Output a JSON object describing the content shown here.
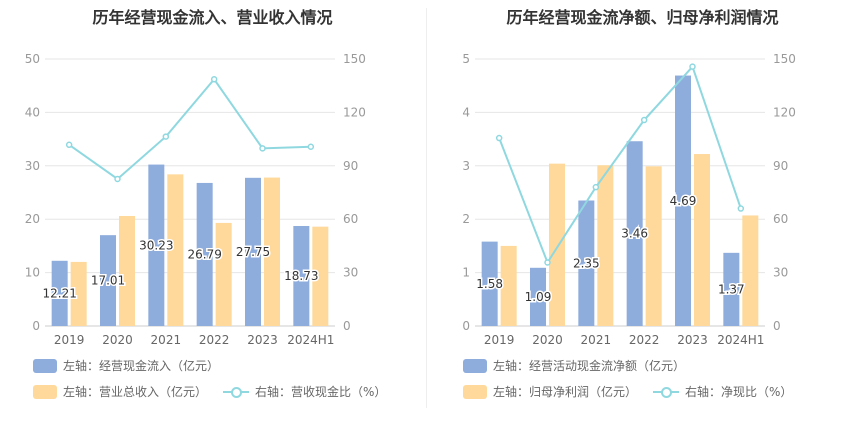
{
  "chart_data": [
    {
      "type": "bar",
      "title": "历年经营现金流入、营业收入情况",
      "categories": [
        "2019",
        "2020",
        "2021",
        "2022",
        "2023",
        "2024H1"
      ],
      "series": [
        {
          "name": "左轴：经营现金流入（亿元）",
          "axis": "left",
          "kind": "bar",
          "color": "#8eacdc",
          "values": [
            12.21,
            17.01,
            30.23,
            26.79,
            27.75,
            18.73
          ],
          "labels": [
            "12.21",
            "17.01",
            "30.23",
            "26.79",
            "27.75",
            "18.73"
          ]
        },
        {
          "name": "左轴：营业总收入（亿元）",
          "axis": "left",
          "kind": "bar",
          "color": "#fed99b",
          "values": [
            12.0,
            20.6,
            28.4,
            19.3,
            27.8,
            18.6
          ]
        },
        {
          "name": "右轴：营收现金比（%）",
          "axis": "right",
          "kind": "line",
          "color": "#8fd8e0",
          "values": [
            101.8,
            82.6,
            106.4,
            138.6,
            99.8,
            100.7
          ]
        }
      ],
      "ylim_left": [
        0,
        50
      ],
      "yticks_left": [
        "0",
        "10",
        "20",
        "30",
        "40",
        "50"
      ],
      "ylim_right": [
        0,
        150
      ],
      "yticks_right": [
        "0",
        "30",
        "60",
        "90",
        "120",
        "150"
      ],
      "grid": true,
      "legend": "bottom"
    },
    {
      "type": "bar",
      "title": "历年经营现金流净额、归母净利润情况",
      "categories": [
        "2019",
        "2020",
        "2021",
        "2022",
        "2023",
        "2024H1"
      ],
      "series": [
        {
          "name": "左轴：经营活动现金流净额（亿元）",
          "axis": "left",
          "kind": "bar",
          "color": "#8eacdc",
          "values": [
            1.58,
            1.09,
            2.35,
            3.46,
            4.69,
            1.37
          ],
          "labels": [
            "1.58",
            "1.09",
            "2.35",
            "3.46",
            "4.69",
            "1.37"
          ]
        },
        {
          "name": "左轴：归母净利润（亿元）",
          "axis": "left",
          "kind": "bar",
          "color": "#fed99b",
          "values": [
            1.5,
            3.04,
            3.01,
            2.99,
            3.22,
            2.07
          ]
        },
        {
          "name": "右轴：净现比（%）",
          "axis": "right",
          "kind": "line",
          "color": "#8fd8e0",
          "values": [
            105.6,
            35.7,
            78.0,
            115.7,
            145.7,
            66.0
          ]
        }
      ],
      "ylim_left": [
        0,
        5
      ],
      "yticks_left": [
        "0",
        "1",
        "2",
        "3",
        "4",
        "5"
      ],
      "ylim_right": [
        0,
        150
      ],
      "yticks_right": [
        "0",
        "30",
        "60",
        "90",
        "120",
        "150"
      ],
      "grid": true,
      "legend": "bottom"
    }
  ]
}
